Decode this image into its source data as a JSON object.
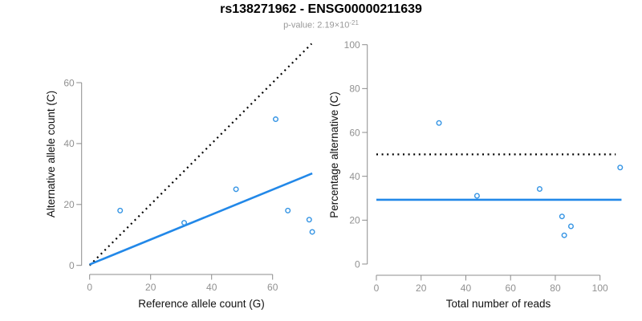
{
  "header": {
    "title": "rs138271962 - ENSG00000211639",
    "pvalue_label": "p-value: ",
    "pvalue_mantissa": "2.19",
    "pvalue_times": "×10",
    "pvalue_exponent": "-21"
  },
  "colors": {
    "line_blue": "#2288e8",
    "point_blue": "#3494e4",
    "dotted_black": "#000000",
    "axis_gray": "#8c8c8c",
    "tick_label_gray": "#919191",
    "axis_title_black": "#111111"
  },
  "chart_data": [
    {
      "name": "allele-counts-scatter",
      "type": "scatter",
      "xlabel": "Reference allele count (G)",
      "ylabel": "Alternative allele count (C)",
      "xlim": [
        0,
        75
      ],
      "ylim": [
        0,
        75
      ],
      "xticks": [
        0,
        20,
        40,
        60
      ],
      "yticks": [
        0,
        20,
        40,
        60
      ],
      "grid": false,
      "points": [
        [
          10,
          18
        ],
        [
          31,
          14
        ],
        [
          48,
          25
        ],
        [
          61,
          48
        ],
        [
          65,
          18
        ],
        [
          72,
          15
        ],
        [
          73,
          11
        ]
      ],
      "lines": [
        {
          "name": "identity-dotted-line",
          "style": "dotted",
          "color": "#000000",
          "x1": 0,
          "y1": 0,
          "x2": 72.8,
          "y2": 72.8
        },
        {
          "name": "fitted-ratio-line",
          "style": "solid",
          "color": "#2288e8",
          "x1": 0,
          "y1": 0.3,
          "x2": 73,
          "y2": 30.2
        }
      ]
    },
    {
      "name": "percentage-vs-reads-scatter",
      "type": "scatter",
      "xlabel": "Total number of reads",
      "ylabel": "Percentage alternative (C)",
      "xlim": [
        0,
        113
      ],
      "ylim": [
        0,
        104
      ],
      "xticks": [
        0,
        20,
        40,
        60,
        80,
        100
      ],
      "yticks": [
        0,
        20,
        40,
        60,
        80,
        100
      ],
      "grid": false,
      "points": [
        [
          28,
          64.3
        ],
        [
          45,
          31.1
        ],
        [
          73,
          34.2
        ],
        [
          83,
          21.7
        ],
        [
          84,
          13.1
        ],
        [
          87,
          17.2
        ],
        [
          109,
          44
        ]
      ],
      "lines": [
        {
          "name": "expected-50pct-dotted-line",
          "style": "dotted",
          "color": "#000000",
          "x1": 0,
          "y1": 50,
          "x2": 107,
          "y2": 50
        },
        {
          "name": "mean-percentage-line",
          "style": "solid",
          "color": "#2288e8",
          "x1": 0,
          "y1": 29.3,
          "x2": 109.6,
          "y2": 29.3
        }
      ]
    }
  ]
}
